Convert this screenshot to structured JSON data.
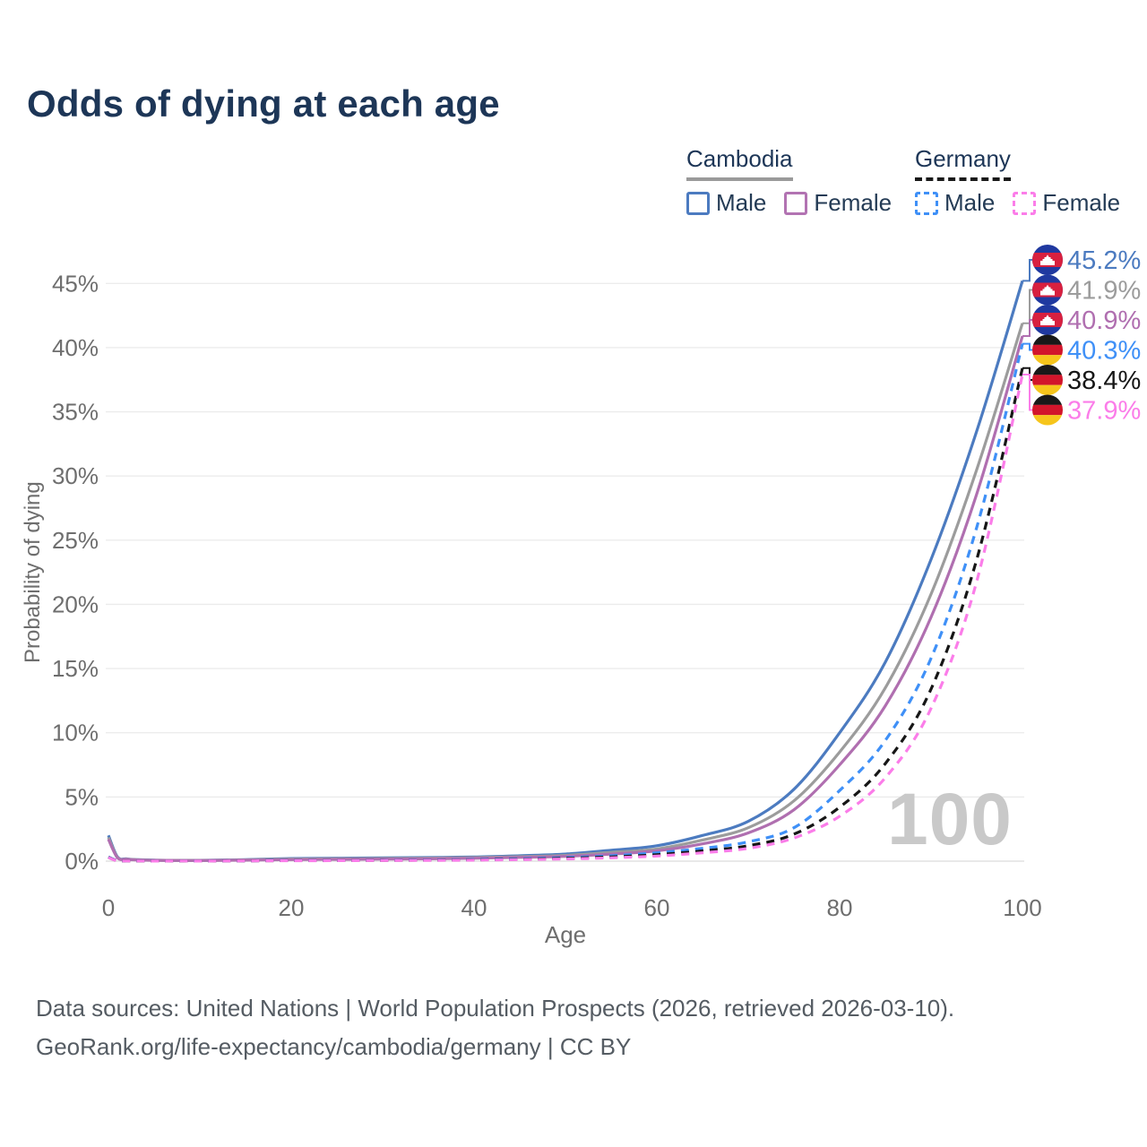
{
  "title": "Odds of dying at each age",
  "legend": {
    "groups": [
      {
        "name": "Cambodia",
        "line_style": "solid",
        "line_color": "#9a9a9a",
        "items": [
          {
            "label": "Male",
            "color": "#4c7bc0",
            "dashed": false
          },
          {
            "label": "Female",
            "color": "#b273b2",
            "dashed": false
          }
        ]
      },
      {
        "name": "Germany",
        "line_style": "dashed",
        "line_color": "#1a1a1a",
        "items": [
          {
            "label": "Male",
            "color": "#3f90f7",
            "dashed": true
          },
          {
            "label": "Female",
            "color": "#fb7de9",
            "dashed": true
          }
        ]
      }
    ]
  },
  "chart_data": {
    "type": "line",
    "title": "Odds of dying at each age",
    "xlabel": "Age",
    "ylabel": "Probability of dying",
    "xlim": [
      0,
      100
    ],
    "ylim": [
      0,
      47
    ],
    "xticks": [
      0,
      20,
      40,
      60,
      80,
      100
    ],
    "yticks": [
      0,
      5,
      10,
      15,
      20,
      25,
      30,
      35,
      40,
      45
    ],
    "ytick_suffix": "%",
    "grid": true,
    "x": [
      0,
      1,
      2,
      3,
      5,
      10,
      15,
      20,
      25,
      30,
      35,
      40,
      45,
      50,
      55,
      60,
      65,
      70,
      75,
      80,
      85,
      90,
      95,
      100
    ],
    "series": [
      {
        "name": "Cambodia Male",
        "country": "Cambodia",
        "sex": "Male",
        "flag": "kh",
        "color": "#4c7bc0",
        "dashed": false,
        "end_label": "45.2%",
        "values": [
          2.0,
          0.32,
          0.18,
          0.12,
          0.08,
          0.06,
          0.12,
          0.2,
          0.23,
          0.25,
          0.28,
          0.32,
          0.42,
          0.55,
          0.85,
          1.2,
          2.0,
          3.1,
          5.6,
          10.0,
          15.5,
          23.5,
          33.5,
          45.2
        ]
      },
      {
        "name": "Cambodia",
        "country": "Cambodia",
        "sex": "Both",
        "flag": "kh",
        "color": "#9c9c9c",
        "dashed": false,
        "end_label": "41.9%",
        "values": [
          1.85,
          0.28,
          0.16,
          0.11,
          0.07,
          0.055,
          0.1,
          0.16,
          0.18,
          0.2,
          0.23,
          0.27,
          0.35,
          0.45,
          0.68,
          0.95,
          1.65,
          2.6,
          4.7,
          8.5,
          13.5,
          20.8,
          30.5,
          41.9
        ]
      },
      {
        "name": "Cambodia Female",
        "country": "Cambodia",
        "sex": "Female",
        "flag": "kh",
        "color": "#b06fb0",
        "dashed": false,
        "end_label": "40.9%",
        "values": [
          1.7,
          0.25,
          0.14,
          0.1,
          0.06,
          0.05,
          0.08,
          0.12,
          0.14,
          0.16,
          0.18,
          0.22,
          0.29,
          0.38,
          0.55,
          0.8,
          1.35,
          2.2,
          4.0,
          7.5,
          12.1,
          19.0,
          28.6,
          40.9
        ]
      },
      {
        "name": "Germany Male",
        "country": "Germany",
        "sex": "Male",
        "flag": "de",
        "color": "#3f90f7",
        "dashed": true,
        "end_label": "40.3%",
        "values": [
          0.33,
          0.03,
          0.02,
          0.02,
          0.01,
          0.01,
          0.03,
          0.06,
          0.06,
          0.08,
          0.1,
          0.13,
          0.19,
          0.28,
          0.42,
          0.65,
          1.0,
          1.5,
          2.6,
          5.5,
          9.4,
          15.8,
          26.0,
          40.3
        ]
      },
      {
        "name": "Germany",
        "country": "Germany",
        "sex": "Both",
        "flag": "de",
        "color": "#161616",
        "dashed": true,
        "end_label": "38.4%",
        "values": [
          0.3,
          0.025,
          0.02,
          0.015,
          0.01,
          0.01,
          0.025,
          0.045,
          0.05,
          0.06,
          0.08,
          0.1,
          0.15,
          0.22,
          0.33,
          0.5,
          0.8,
          1.2,
          2.1,
          4.2,
          7.6,
          13.4,
          23.5,
          38.4
        ]
      },
      {
        "name": "Germany Female",
        "country": "Germany",
        "sex": "Female",
        "flag": "de",
        "color": "#fb7de9",
        "dashed": true,
        "end_label": "37.9%",
        "values": [
          0.28,
          0.02,
          0.015,
          0.012,
          0.01,
          0.01,
          0.02,
          0.035,
          0.04,
          0.05,
          0.06,
          0.08,
          0.12,
          0.17,
          0.26,
          0.4,
          0.65,
          1.0,
          1.8,
          3.5,
          6.5,
          11.9,
          21.8,
          37.9
        ]
      }
    ],
    "legend_position": "top-right",
    "annotation": "100"
  },
  "flags": {
    "kh": {
      "blue": "#2039a0",
      "red": "#d8203f",
      "temple": "#ffffff"
    },
    "de": {
      "black": "#191919",
      "red": "#d2152b",
      "gold": "#f6c51b"
    }
  },
  "watermark": "100",
  "colors": {
    "title_text": "#1d3657",
    "axis_text": "#6e6e6e",
    "grid": "#ececec",
    "baseline": "#e2e2e2",
    "watermark": "#c9c9c9",
    "footer_text": "#555c63"
  },
  "footer": {
    "line1": "Data sources: United Nations | World Population Prospects (2026, retrieved 2026-03-10).",
    "line2": "GeoRank.org/life-expectancy/cambodia/germany | CC BY"
  }
}
